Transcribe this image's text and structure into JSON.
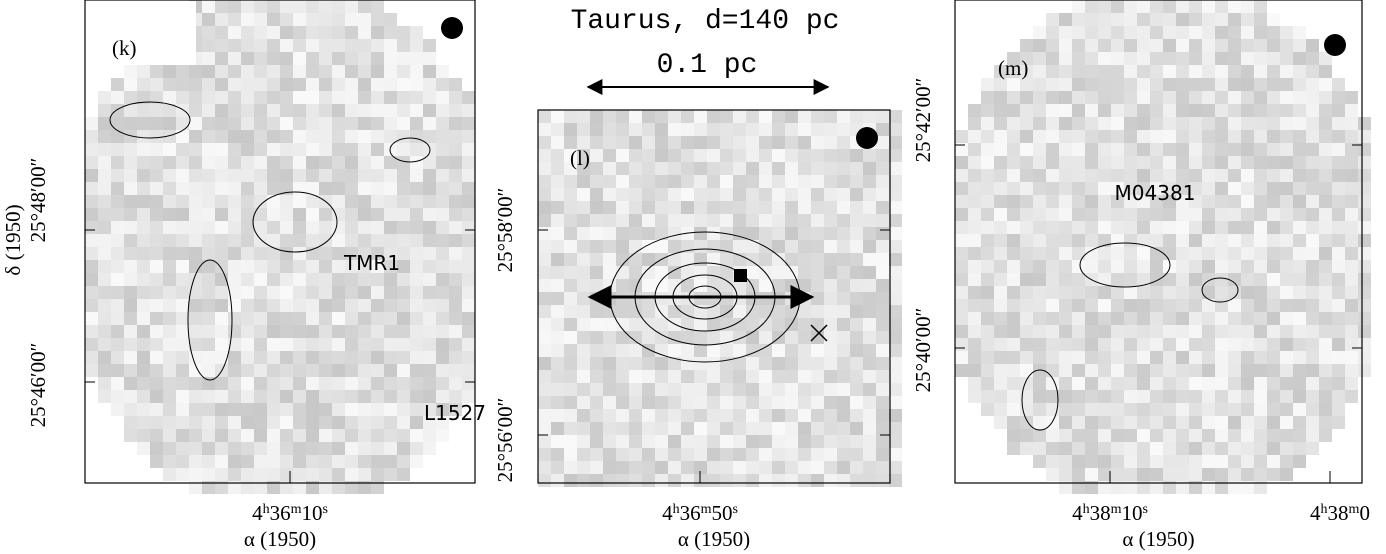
{
  "header": {
    "title": "Taurus, d=140 pc",
    "scale_label": "0.1 pc"
  },
  "panels": [
    {
      "label": "(k)",
      "source": "TMR1",
      "ra_ticks": [
        [
          "4",
          "h",
          "36",
          "m",
          "10",
          "s"
        ]
      ],
      "dec_ticks": [
        "25°48′00″",
        "25°46′00″"
      ],
      "x_axis_title": "α (1950)",
      "y_axis_title": "δ (1950)"
    },
    {
      "label": "(l)",
      "source": "L1527",
      "ra_ticks": [
        [
          "4",
          "h",
          "36",
          "m",
          "50",
          "s"
        ]
      ],
      "dec_ticks": [
        "25°58′00″",
        "25°56′00″"
      ],
      "x_axis_title": "α (1950)"
    },
    {
      "label": "(m)",
      "source": "M04381",
      "ra_ticks": [
        [
          "4",
          "h",
          "38",
          "m",
          "10",
          "s"
        ],
        [
          "4",
          "h",
          "38",
          "m",
          "0"
        ]
      ],
      "dec_ticks": [
        "25°42′00″",
        "25°40′00″"
      ],
      "x_axis_title": "α (1950)"
    }
  ]
}
